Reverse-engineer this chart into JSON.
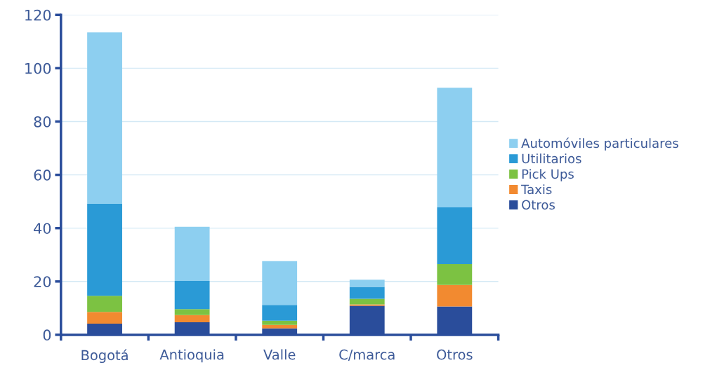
{
  "chart_data": {
    "type": "bar",
    "stacked": true,
    "categories": [
      "Bogotá",
      "Antioquia",
      "Valle",
      "C/marca",
      "Otros"
    ],
    "series": [
      {
        "name": "Otros",
        "color": "#2a4d9b",
        "values": [
          4.2,
          4.7,
          2.4,
          10.9,
          10.6
        ]
      },
      {
        "name": "Taxis",
        "color": "#f28a30",
        "values": [
          4.4,
          2.7,
          1.3,
          0.5,
          8.1
        ]
      },
      {
        "name": "Pick Ups",
        "color": "#7cc242",
        "values": [
          6.0,
          2.2,
          1.6,
          2.1,
          7.8
        ]
      },
      {
        "name": "Utilitarios",
        "color": "#2a9ad6",
        "values": [
          34.5,
          10.6,
          5.9,
          4.5,
          21.3
        ]
      },
      {
        "name": "Automóviles particulares",
        "color": "#8dcff0",
        "values": [
          64.3,
          20.3,
          16.4,
          2.7,
          44.9
        ]
      }
    ],
    "ylim": [
      0,
      120
    ],
    "yticks": [
      0,
      20,
      40,
      60,
      80,
      100,
      120
    ],
    "grid": "y",
    "legend": "right"
  }
}
